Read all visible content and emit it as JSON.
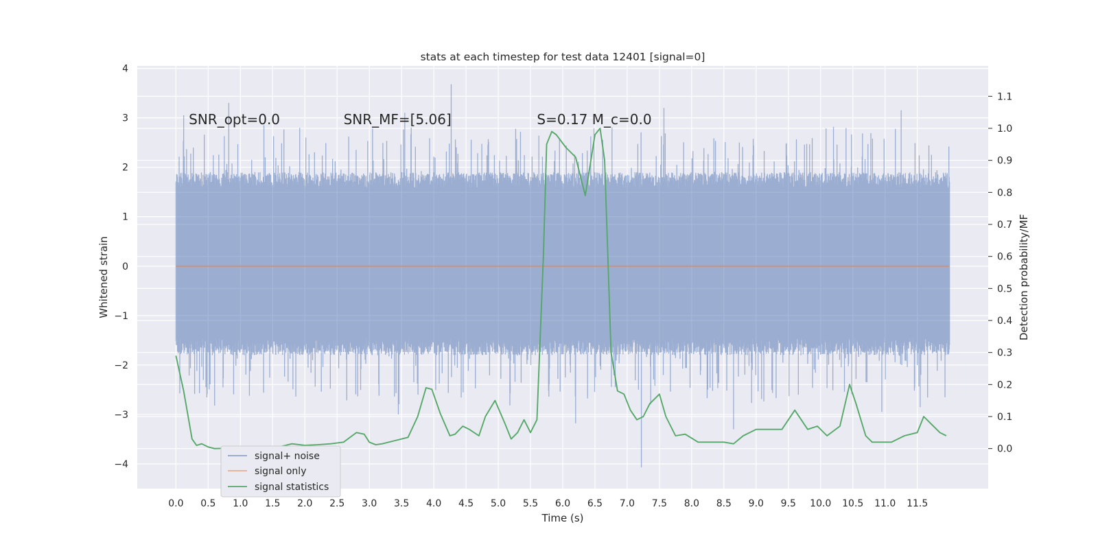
{
  "chart_data": {
    "type": "line",
    "title": "stats at each timestep for test data 12401 [signal=0]",
    "xlabel": "Time (s)",
    "ylabel": "Whitened strain",
    "y2label": "Detection probability/MF",
    "xlim": [
      -0.6,
      12.6
    ],
    "ylim": [
      -4.5,
      4.05
    ],
    "y2lim": [
      -0.125,
      1.195
    ],
    "xticks": [
      0.0,
      0.5,
      1.0,
      1.5,
      2.0,
      2.5,
      3.0,
      3.5,
      4.0,
      4.5,
      5.0,
      5.5,
      6.0,
      6.5,
      7.0,
      7.5,
      8.0,
      8.5,
      9.0,
      9.5,
      10.0,
      10.5,
      11.0,
      11.5
    ],
    "xtick_labels": [
      "0.0",
      "0.5",
      "1.0",
      "1.5",
      "2.0",
      "2.5",
      "3.0",
      "3.5",
      "4.0",
      "4.5",
      "5.0",
      "5.5",
      "6.0",
      "6.5",
      "7.0",
      "7.5",
      "8.0",
      "8.5",
      "9.0",
      "9.5",
      "10.0",
      "10.5",
      "11.0",
      "11.5"
    ],
    "yticks": [
      -4,
      -3,
      -2,
      -1,
      0,
      1,
      2,
      3,
      4
    ],
    "ytick_labels": [
      "−4",
      "−3",
      "−2",
      "−1",
      "0",
      "1",
      "2",
      "3",
      "4"
    ],
    "y2ticks": [
      0.0,
      0.1,
      0.2,
      0.3,
      0.4,
      0.5,
      0.6,
      0.7,
      0.8,
      0.9,
      1.0,
      1.1
    ],
    "y2tick_labels": [
      "0.0",
      "0.1",
      "0.2",
      "0.3",
      "0.4",
      "0.5",
      "0.6",
      "0.7",
      "0.8",
      "0.9",
      "1.0",
      "1.1"
    ],
    "grid": true,
    "legend_position": "lower-left",
    "annotations": [
      {
        "text": "SNR_opt=0.0",
        "x": 0.2,
        "y": 2.87
      },
      {
        "text": "SNR_MF=[5.06]",
        "x": 2.6,
        "y": 2.87
      },
      {
        "text": "S=0.17  M_c=0.0",
        "x": 5.6,
        "y": 2.87
      }
    ],
    "series": [
      {
        "name": "signal+ noise",
        "color": "#4c72b0",
        "axis": "left",
        "kind": "noise",
        "x_range": [
          0.0,
          12.0
        ],
        "typical_amplitude": [
          -1.6,
          1.7
        ],
        "y_range": [
          -4.07,
          3.68
        ],
        "spikes": [
          {
            "x": 0.12,
            "y": 3.05
          },
          {
            "x": 0.82,
            "y": 3.3
          },
          {
            "x": 1.92,
            "y": 2.8
          },
          {
            "x": 3.55,
            "y": 3.1
          },
          {
            "x": 4.27,
            "y": 3.68
          },
          {
            "x": 7.57,
            "y": 3.2
          },
          {
            "x": 11.25,
            "y": 3.15
          },
          {
            "x": 0.6,
            "y": -2.82
          },
          {
            "x": 3.45,
            "y": -3.0
          },
          {
            "x": 6.2,
            "y": -3.18
          },
          {
            "x": 7.22,
            "y": -4.07
          },
          {
            "x": 8.65,
            "y": -3.3
          },
          {
            "x": 10.95,
            "y": -2.95
          }
        ]
      },
      {
        "name": "signal only",
        "color": "#dd8452",
        "axis": "left",
        "x": [
          0.0,
          12.0
        ],
        "y": [
          0.0,
          0.0
        ]
      },
      {
        "name": "signal statistics",
        "color": "#55a868",
        "axis": "right",
        "x": [
          0.0,
          0.12,
          0.25,
          0.32,
          0.4,
          0.5,
          0.6,
          0.8,
          1.0,
          1.2,
          1.4,
          1.6,
          1.8,
          2.0,
          2.2,
          2.4,
          2.6,
          2.8,
          2.92,
          3.0,
          3.1,
          3.2,
          3.4,
          3.6,
          3.75,
          3.88,
          3.97,
          4.1,
          4.25,
          4.33,
          4.45,
          4.55,
          4.7,
          4.8,
          4.95,
          5.1,
          5.2,
          5.3,
          5.4,
          5.5,
          5.6,
          5.7,
          5.75,
          5.83,
          5.9,
          6.05,
          6.2,
          6.35,
          6.5,
          6.58,
          6.65,
          6.75,
          6.85,
          6.95,
          7.05,
          7.15,
          7.25,
          7.35,
          7.5,
          7.6,
          7.75,
          7.9,
          8.1,
          8.3,
          8.5,
          8.65,
          8.8,
          9.0,
          9.2,
          9.4,
          9.5,
          9.6,
          9.8,
          9.95,
          10.1,
          10.3,
          10.45,
          10.55,
          10.7,
          10.8,
          10.9,
          11.1,
          11.3,
          11.5,
          11.6,
          11.7,
          11.85,
          11.95
        ],
        "y": [
          0.29,
          0.18,
          0.03,
          0.01,
          0.015,
          0.005,
          0.0,
          0.001,
          0.0,
          0.001,
          0.002,
          0.005,
          0.015,
          0.01,
          0.012,
          0.015,
          0.02,
          0.05,
          0.045,
          0.02,
          0.012,
          0.015,
          0.025,
          0.035,
          0.1,
          0.19,
          0.185,
          0.11,
          0.04,
          0.045,
          0.07,
          0.06,
          0.04,
          0.1,
          0.15,
          0.08,
          0.03,
          0.05,
          0.09,
          0.05,
          0.09,
          0.6,
          0.95,
          0.99,
          0.98,
          0.94,
          0.91,
          0.79,
          0.98,
          1.0,
          0.9,
          0.3,
          0.18,
          0.17,
          0.12,
          0.09,
          0.1,
          0.14,
          0.17,
          0.1,
          0.04,
          0.045,
          0.02,
          0.02,
          0.02,
          0.015,
          0.04,
          0.06,
          0.06,
          0.06,
          0.09,
          0.12,
          0.06,
          0.07,
          0.04,
          0.07,
          0.2,
          0.14,
          0.04,
          0.02,
          0.02,
          0.02,
          0.04,
          0.05,
          0.1,
          0.08,
          0.05,
          0.04
        ]
      }
    ]
  }
}
